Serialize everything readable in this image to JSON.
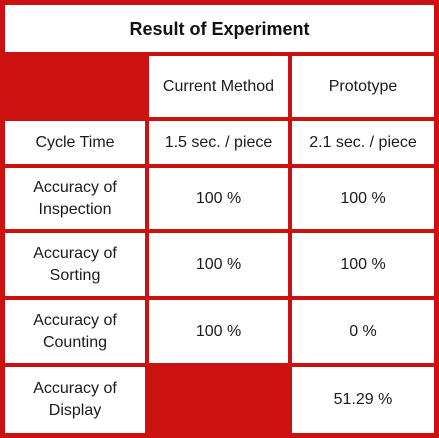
{
  "title": "Result of Experiment",
  "colors": {
    "grid_red": "#cc1111",
    "cell_bg": "#ffffff",
    "text": "#1a1a1a"
  },
  "columns": [
    "",
    "Current Method",
    "Prototype"
  ],
  "rows": [
    {
      "label": "Cycle Time",
      "current": "1.5 sec. / piece",
      "prototype": "2.1 sec. / piece"
    },
    {
      "label": "Accuracy of\nInspection",
      "current": "100 %",
      "prototype": "100 %"
    },
    {
      "label": "Accuracy of\nSorting",
      "current": "100 %",
      "prototype": "100 %"
    },
    {
      "label": "Accuracy of\nCounting",
      "current": "100 %",
      "prototype": "0 %"
    },
    {
      "label": "Accuracy of\nDisplay",
      "current": "",
      "prototype": "51.29 %"
    }
  ]
}
